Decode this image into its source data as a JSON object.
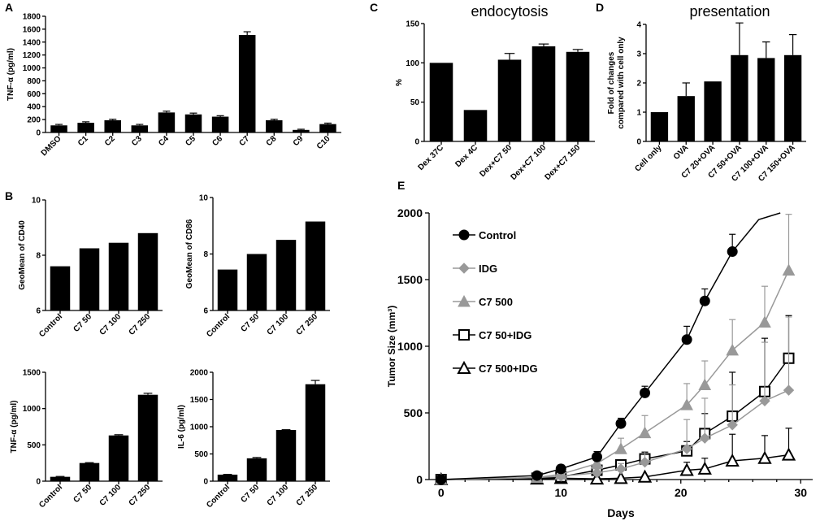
{
  "chart_data": [
    {
      "id": "A",
      "type": "bar",
      "panel_letter": "A",
      "title": "",
      "ylabel": "TNF-α (pg/ml)",
      "xlabel": "",
      "categories": [
        "DMSO",
        "C1",
        "C2",
        "C3",
        "C4",
        "C5",
        "C6",
        "C7",
        "C8",
        "C9",
        "C10"
      ],
      "values": [
        110,
        150,
        190,
        110,
        310,
        280,
        245,
        1510,
        190,
        40,
        130
      ],
      "errors": [
        15,
        15,
        15,
        15,
        20,
        20,
        15,
        50,
        15,
        10,
        15
      ],
      "ylim": [
        0,
        1800
      ],
      "yticks": [
        0,
        200,
        400,
        600,
        800,
        1000,
        1200,
        1400,
        1600,
        1800
      ]
    },
    {
      "id": "B1",
      "type": "bar",
      "panel_letter": "B",
      "title": "",
      "ylabel": "GeoMean of CD40",
      "xlabel": "",
      "categories": [
        "Control",
        "C7 50",
        "C7 100",
        "C7 250"
      ],
      "values": [
        7.6,
        8.25,
        8.45,
        8.8
      ],
      "errors": [
        0,
        0,
        0,
        0
      ],
      "ylim": [
        6,
        10
      ],
      "yticks": [
        6,
        8,
        10
      ]
    },
    {
      "id": "B2",
      "type": "bar",
      "panel_letter": "",
      "title": "",
      "ylabel": "GeoMean of CD86",
      "xlabel": "",
      "categories": [
        "Control",
        "C7 50",
        "C7 100",
        "C7 250"
      ],
      "values": [
        7.45,
        8.0,
        8.5,
        9.15
      ],
      "errors": [
        0,
        0,
        0,
        0
      ],
      "ylim": [
        6,
        10
      ],
      "yticks": [
        6,
        8,
        10
      ]
    },
    {
      "id": "B3",
      "type": "bar",
      "panel_letter": "",
      "title": "",
      "ylabel": "TNF-α (pg/ml)",
      "xlabel": "",
      "categories": [
        "Control",
        "C7 50",
        "C7 100",
        "C7 250"
      ],
      "values": [
        60,
        250,
        630,
        1190
      ],
      "errors": [
        5,
        5,
        10,
        20
      ],
      "ylim": [
        0,
        1500
      ],
      "yticks": [
        0,
        500,
        1000,
        1500
      ]
    },
    {
      "id": "B4",
      "type": "bar",
      "panel_letter": "",
      "title": "",
      "ylabel": "IL-6 (pg/ml)",
      "xlabel": "",
      "categories": [
        "Control",
        "C7 50",
        "C7 100",
        "C7 250"
      ],
      "values": [
        120,
        420,
        940,
        1780
      ],
      "errors": [
        5,
        15,
        5,
        70
      ],
      "ylim": [
        0,
        2000
      ],
      "yticks": [
        0,
        500,
        1000,
        1500,
        2000
      ]
    },
    {
      "id": "C",
      "type": "bar",
      "panel_letter": "C",
      "title": "endocytosis",
      "ylabel": "%",
      "xlabel": "",
      "categories": [
        "Dex 37C",
        "Dex 4C",
        "Dex+C7 50",
        "Dex+C7 100",
        "Dex+C7 150"
      ],
      "values": [
        100,
        40,
        104,
        121,
        114
      ],
      "errors": [
        0,
        0,
        8,
        3,
        3
      ],
      "ylim": [
        0,
        150
      ],
      "yticks": [
        0,
        50,
        100,
        150
      ]
    },
    {
      "id": "D",
      "type": "bar",
      "panel_letter": "D",
      "title": "presentation",
      "ylabel": "Fold of changes compared with cell only",
      "xlabel": "",
      "categories": [
        "Cell only",
        "OVA",
        "C7 20+OVA",
        "C7 50+OVA",
        "C7 100+OVA",
        "C7 150+OVA"
      ],
      "values": [
        1.0,
        1.55,
        2.05,
        2.95,
        2.85,
        2.95
      ],
      "errors": [
        0,
        0.45,
        0,
        1.1,
        0.55,
        0.7
      ],
      "ylim": [
        0,
        4
      ],
      "yticks": [
        0,
        1,
        2,
        3,
        4
      ]
    },
    {
      "id": "E",
      "type": "line",
      "panel_letter": "E",
      "title": "",
      "ylabel": "Tumor Size (mm³)",
      "xlabel": "Days",
      "xlim": [
        -1,
        31
      ],
      "ylim": [
        0,
        2000
      ],
      "xticks": [
        0,
        10,
        20,
        30
      ],
      "yticks": [
        0,
        500,
        1000,
        1500,
        2000
      ],
      "series": [
        {
          "name": "Control",
          "marker": "circle",
          "color": "#000000",
          "x": [
            0,
            8,
            10,
            13,
            15,
            17,
            20.5,
            22,
            24.3
          ],
          "y": [
            0,
            30,
            80,
            170,
            420,
            650,
            1050,
            1340,
            1710
          ],
          "err": [
            0,
            20,
            30,
            40,
            40,
            50,
            100,
            90,
            130
          ],
          "curve": {
            "x": [
              24.3,
              26.5,
              28.3
            ],
            "y": [
              1710,
              1950,
              2000
            ]
          }
        },
        {
          "name": "IDG",
          "marker": "diamond",
          "color": "#999999",
          "x": [
            0,
            8,
            10,
            13,
            15,
            17,
            20.5,
            22,
            24.3,
            27,
            29
          ],
          "y": [
            0,
            15,
            25,
            50,
            80,
            130,
            230,
            310,
            410,
            590,
            670
          ],
          "err": [
            0,
            15,
            20,
            30,
            40,
            80,
            220,
            300,
            300,
            440,
            550
          ]
        },
        {
          "name": "C7 500",
          "marker": "triangle",
          "color": "#999999",
          "x": [
            0,
            8,
            10,
            13,
            15,
            17,
            20.5,
            22,
            24.3,
            27,
            29
          ],
          "y": [
            0,
            15,
            40,
            120,
            230,
            350,
            560,
            710,
            970,
            1180,
            1570
          ],
          "err": [
            0,
            15,
            30,
            40,
            80,
            130,
            160,
            180,
            230,
            270,
            420
          ]
        },
        {
          "name": "C7 50+IDG",
          "marker": "square",
          "color": "#000000",
          "x": [
            0,
            8,
            10,
            13,
            15,
            17,
            20.5,
            22,
            24.3,
            27,
            29
          ],
          "y": [
            0,
            10,
            20,
            70,
            110,
            155,
            215,
            345,
            475,
            660,
            910
          ],
          "err": [
            0,
            10,
            15,
            20,
            30,
            50,
            70,
            150,
            330,
            400,
            320
          ]
        },
        {
          "name": "C7 500+IDG",
          "marker": "triangle-open",
          "color": "#000000",
          "x": [
            0,
            8,
            10,
            13,
            15,
            17,
            20.5,
            22,
            24.3,
            27,
            29
          ],
          "y": [
            0,
            5,
            10,
            5,
            10,
            20,
            70,
            80,
            140,
            160,
            185
          ],
          "err": [
            0,
            5,
            5,
            5,
            10,
            10,
            60,
            80,
            200,
            170,
            200
          ]
        }
      ]
    }
  ]
}
